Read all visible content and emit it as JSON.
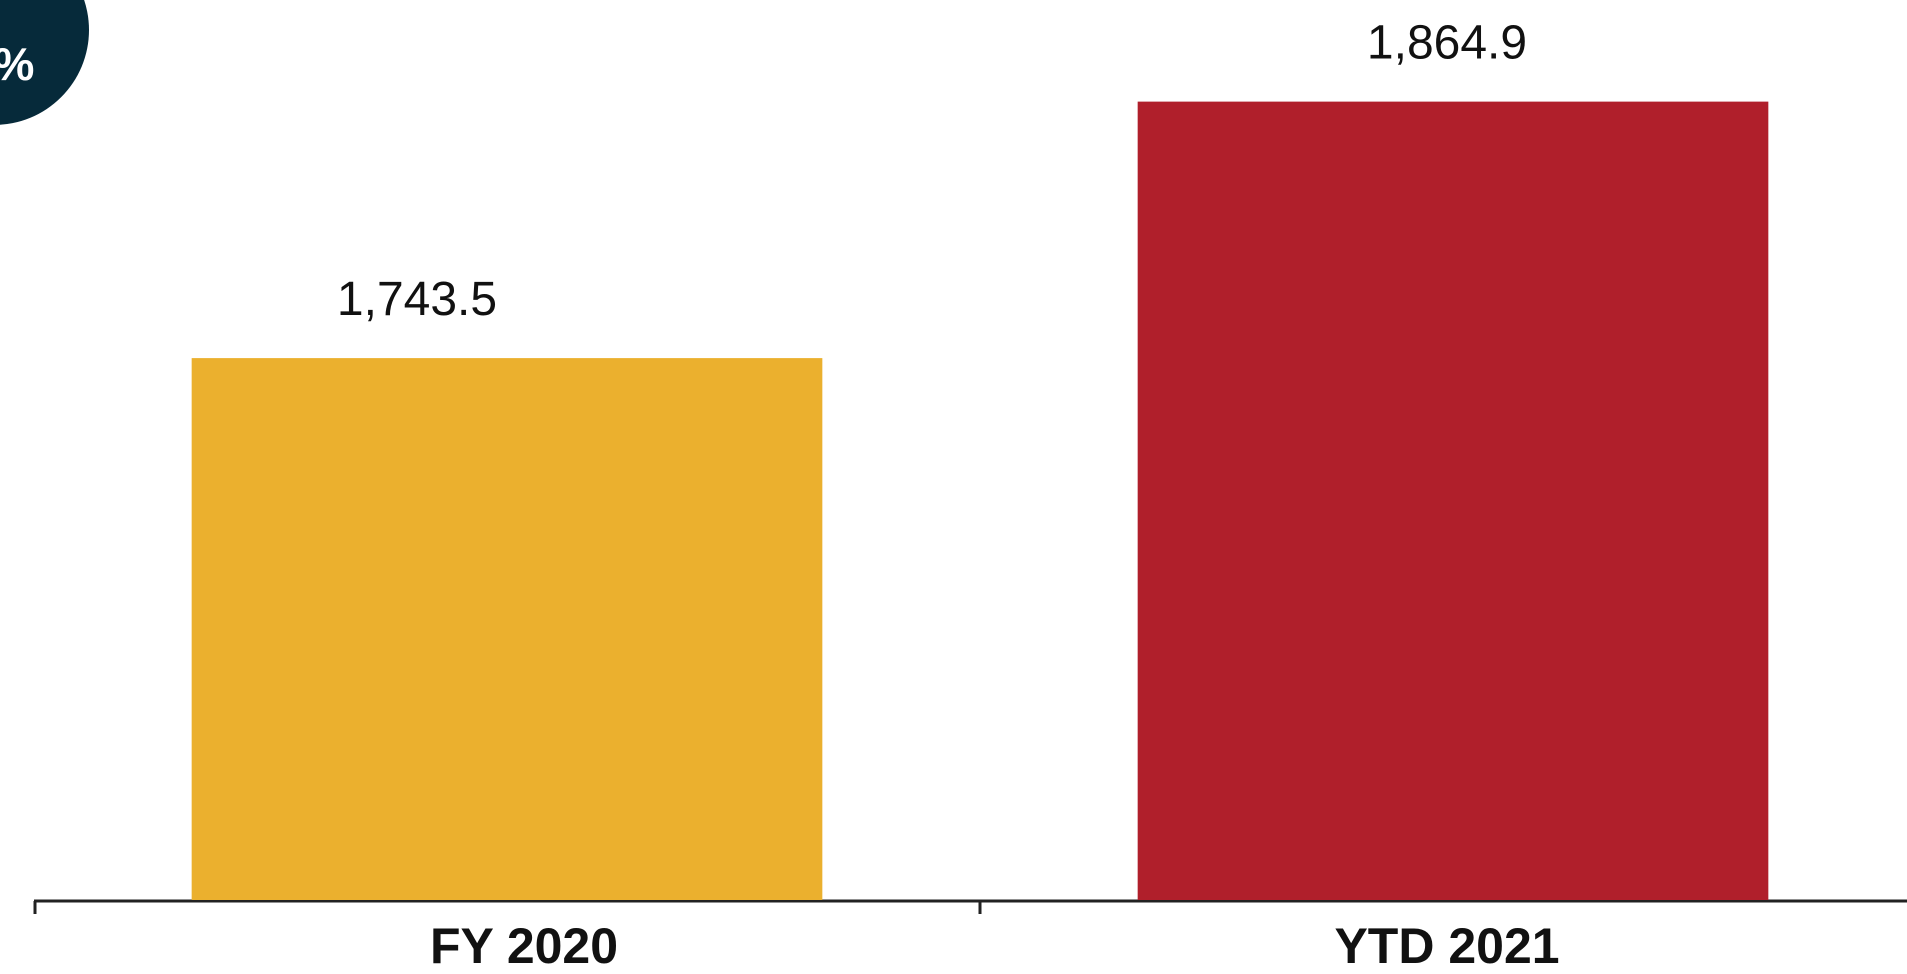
{
  "chart_data": {
    "type": "bar",
    "annotation": "%",
    "categories": [
      "FY 2020",
      "YTD 2021"
    ],
    "values": [
      1743.5,
      1864.9
    ],
    "value_labels": [
      "1,743.5",
      "1,864.9"
    ],
    "colors": [
      "#ebb02e",
      "#b01f2b"
    ],
    "ylim": [
      1487,
      1913
    ]
  }
}
